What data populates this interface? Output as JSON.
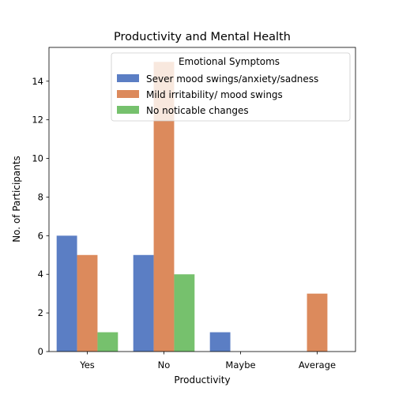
{
  "chart_data": {
    "type": "bar",
    "title": "Productivity and Mental Health",
    "xlabel": "Productivity",
    "ylabel": "No. of Participants",
    "categories": [
      "Yes",
      "No",
      "Maybe",
      "Average"
    ],
    "ylim": [
      0,
      15.75
    ],
    "yticks": [
      0,
      2,
      4,
      6,
      8,
      10,
      12,
      14
    ],
    "grid": false,
    "legend": {
      "title": "Emotional Symptoms",
      "placement": "upper-right"
    },
    "series": [
      {
        "name": "Sever mood swings/anxiety/sadness",
        "color": "#5b7ec4",
        "values": [
          6,
          5,
          1,
          0
        ]
      },
      {
        "name": "Mild irritability/ mood swings",
        "color": "#dc8a5c",
        "values": [
          5,
          15,
          0,
          3
        ]
      },
      {
        "name": "No noticable changes",
        "color": "#76c16d",
        "values": [
          1,
          4,
          0,
          0
        ]
      }
    ]
  }
}
